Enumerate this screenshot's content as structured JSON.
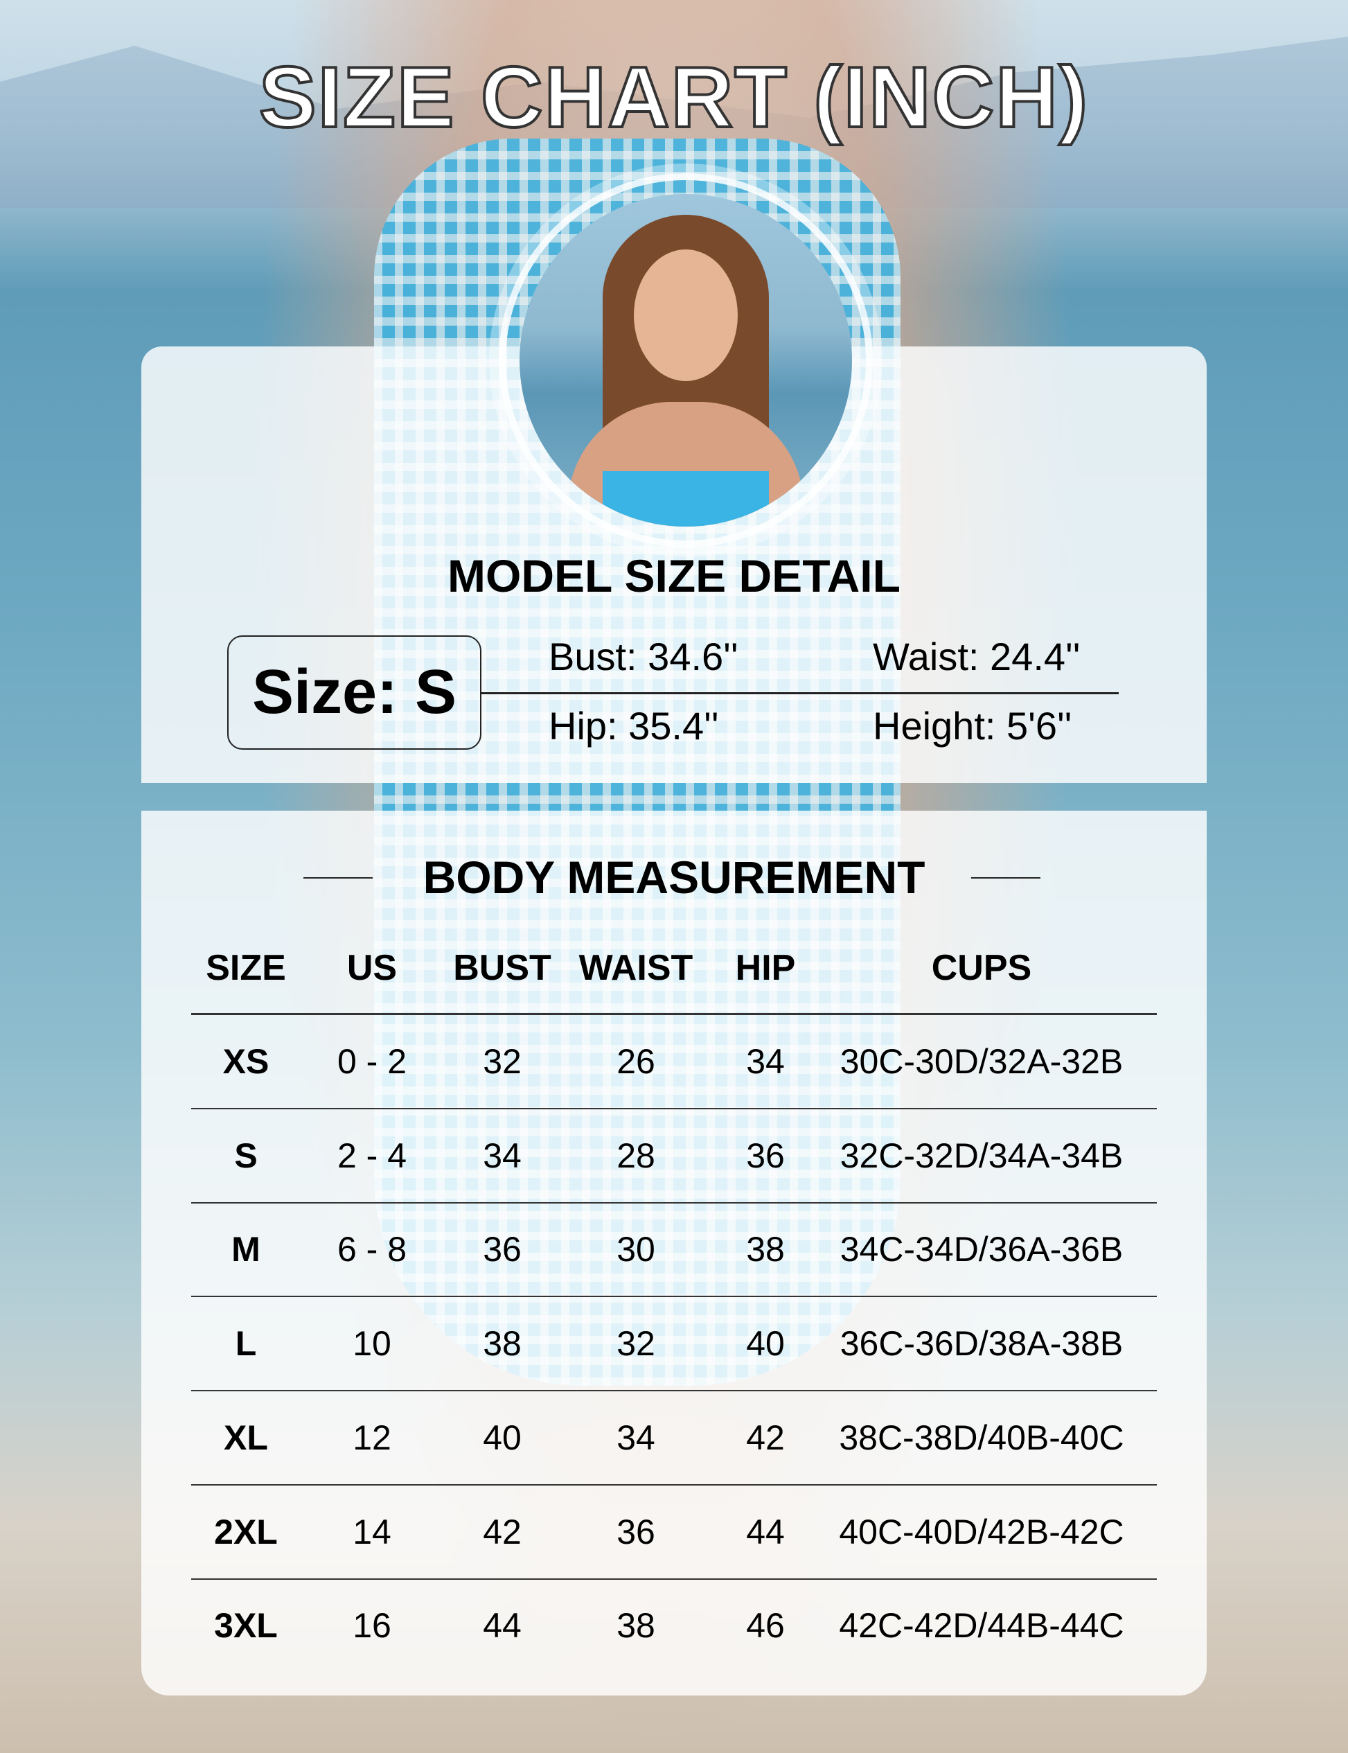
{
  "title": "SIZE CHART (INCH)",
  "model": {
    "heading": "MODEL SIZE DETAIL",
    "size": "Size: S",
    "bust": "Bust: 34.6''",
    "waist": "Waist: 24.4''",
    "hip": "Hip: 35.4''",
    "height": "Height: 5'6''"
  },
  "body": {
    "heading": "BODY MEASUREMENT",
    "columns": [
      "SIZE",
      "US",
      "BUST",
      "WAIST",
      "HIP",
      "CUPS"
    ],
    "rows": [
      [
        "XS",
        "0 - 2",
        "32",
        "26",
        "34",
        "30C-30D/32A-32B"
      ],
      [
        "S",
        "2 - 4",
        "34",
        "28",
        "36",
        "32C-32D/34A-34B"
      ],
      [
        "M",
        "6 - 8",
        "36",
        "30",
        "38",
        "34C-34D/36A-36B"
      ],
      [
        "L",
        "10",
        "38",
        "32",
        "40",
        "36C-36D/38A-38B"
      ],
      [
        "XL",
        "12",
        "40",
        "34",
        "42",
        "38C-38D/40B-40C"
      ],
      [
        "2XL",
        "14",
        "42",
        "36",
        "44",
        "40C-40D/42B-42C"
      ],
      [
        "3XL",
        "16",
        "44",
        "38",
        "46",
        "42C-42D/44B-44C"
      ]
    ]
  }
}
